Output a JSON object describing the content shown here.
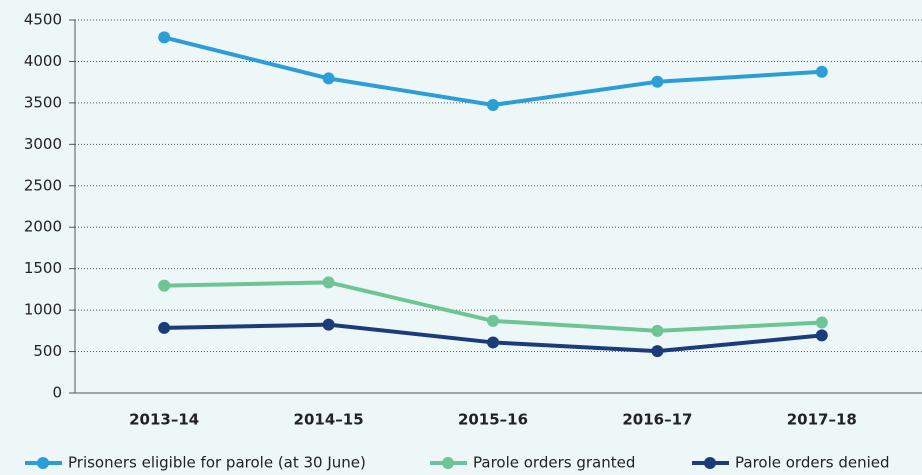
{
  "chart_data": {
    "type": "line",
    "categories": [
      "2013–14",
      "2014–15",
      "2015–16",
      "2016–17",
      "2017–18"
    ],
    "series": [
      {
        "name": "Prisoners eligible for parole (at 30 June)",
        "color": "#2b9ed8",
        "values": [
          4290,
          3795,
          3475,
          3755,
          3875
        ]
      },
      {
        "name": "Parole orders granted",
        "color": "#6dc595",
        "values": [
          1295,
          1335,
          870,
          750,
          850
        ]
      },
      {
        "name": "Parole orders denied",
        "color": "#1c3b7b",
        "values": [
          785,
          825,
          610,
          505,
          695
        ]
      }
    ],
    "ylim": [
      0,
      4500
    ],
    "yticks": [
      0,
      500,
      1000,
      1500,
      2000,
      2500,
      3000,
      3500,
      4000,
      4500
    ],
    "grid": true,
    "legend": "bottom"
  }
}
